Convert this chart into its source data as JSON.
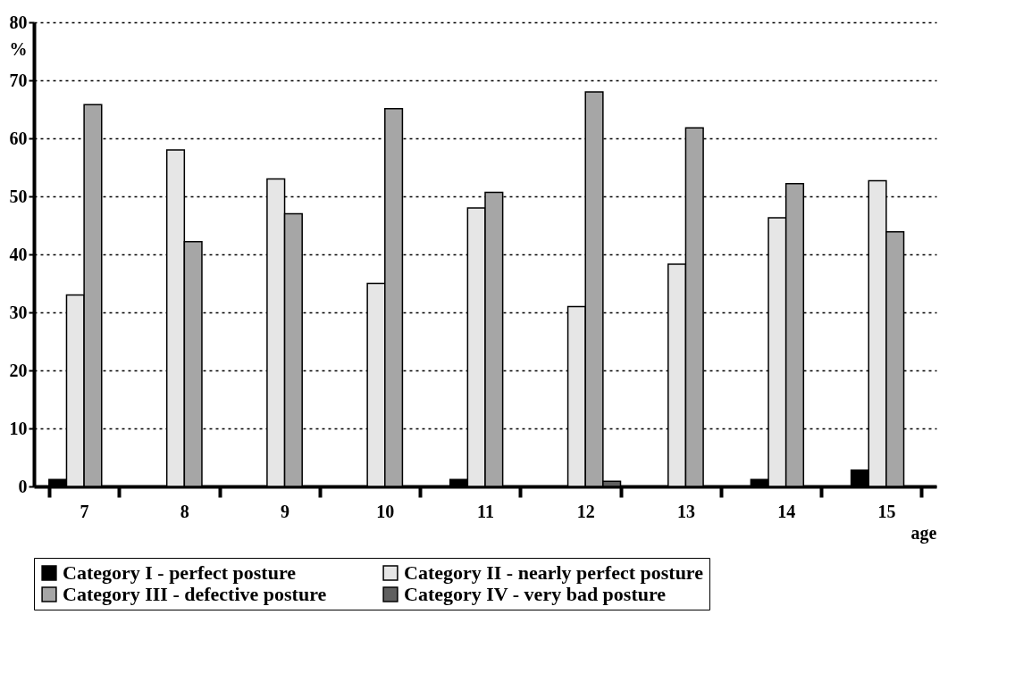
{
  "chart_data": {
    "type": "bar",
    "xlabel": "age",
    "ylabel": "%",
    "categories": [
      "7",
      "8",
      "9",
      "10",
      "11",
      "12",
      "13",
      "14",
      "15"
    ],
    "series": [
      {
        "name": "Category I - perfect posture",
        "color": "#000000",
        "values": [
          1.2,
          null,
          null,
          null,
          1.2,
          null,
          null,
          1.2,
          2.8
        ]
      },
      {
        "name": "Category II - nearly perfect posture",
        "color": "#e6e6e6",
        "values": [
          33,
          58,
          53,
          35,
          48,
          31,
          38.3,
          46.3,
          52.7
        ]
      },
      {
        "name": "Category III - defective posture",
        "color": "#a6a6a6",
        "values": [
          65.8,
          42.2,
          47,
          65.1,
          50.7,
          68,
          61.8,
          52.2,
          43.9
        ]
      },
      {
        "name": "Category IV - very bad posture",
        "color": "#606060",
        "values": [
          null,
          null,
          null,
          null,
          null,
          0.9,
          null,
          null,
          null
        ]
      }
    ],
    "ylim": [
      0,
      80
    ],
    "yticks": [
      0,
      10,
      20,
      30,
      40,
      50,
      60,
      70,
      80
    ],
    "grid": "y",
    "legend": "bottom"
  }
}
